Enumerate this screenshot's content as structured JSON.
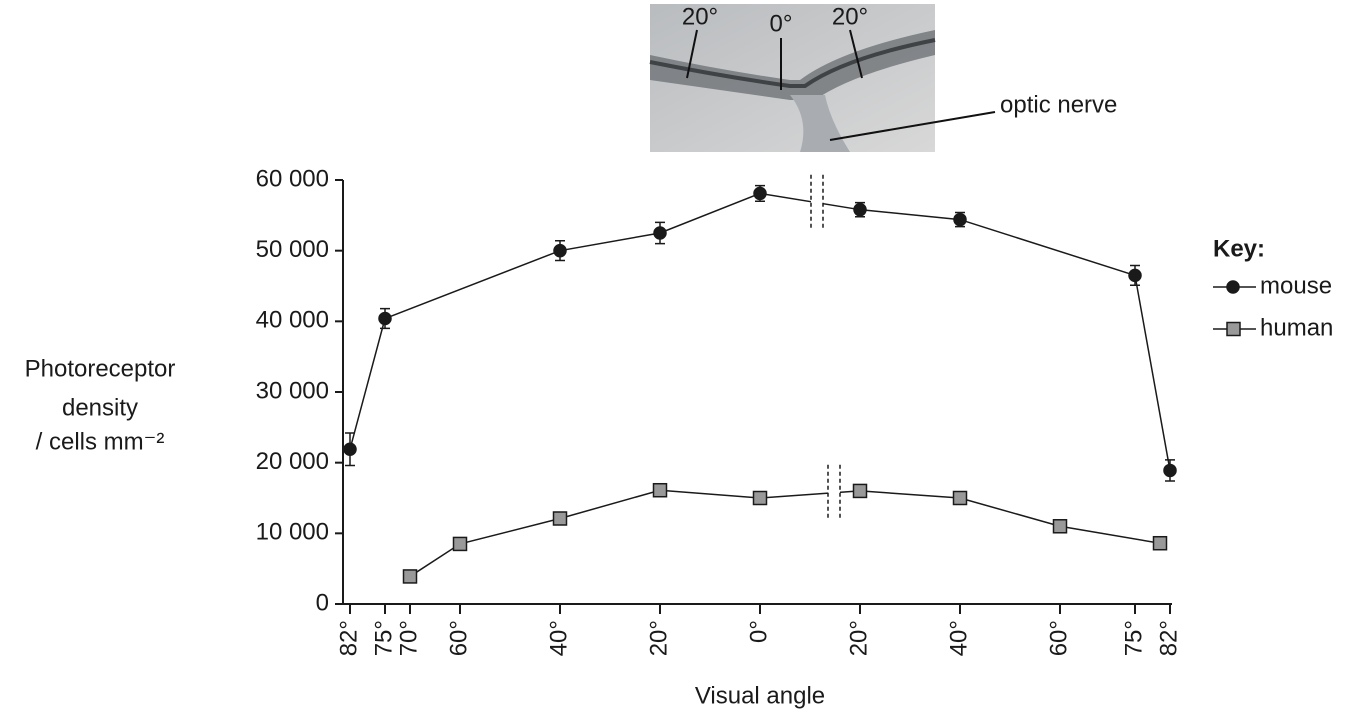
{
  "inset": {
    "labels": [
      "20°",
      "0°",
      "20°",
      "optic nerve"
    ]
  },
  "chart_data": {
    "type": "line",
    "x_label": "Visual angle",
    "y_label": [
      "Photoreceptor",
      "density",
      "/ cells mm⁻²"
    ],
    "legend_title": "Key:",
    "xlim": [
      -82,
      82
    ],
    "xticks": [
      {
        "value": -82,
        "label": "82°"
      },
      {
        "value": -75,
        "label": "75°"
      },
      {
        "value": -70,
        "label": "70°"
      },
      {
        "value": -60,
        "label": "60°"
      },
      {
        "value": -40,
        "label": "40°"
      },
      {
        "value": -20,
        "label": "20°"
      },
      {
        "value": 0,
        "label": "0°"
      },
      {
        "value": 20,
        "label": "20°"
      },
      {
        "value": 40,
        "label": "40°"
      },
      {
        "value": 60,
        "label": "60°"
      },
      {
        "value": 75,
        "label": "75°"
      },
      {
        "value": 82,
        "label": "82°"
      }
    ],
    "ylim": [
      0,
      60000
    ],
    "yticks": [
      0,
      {
        "value": 10000,
        "label": "10 000"
      },
      {
        "value": 20000,
        "label": "20 000"
      },
      {
        "value": 30000,
        "label": "30 000"
      },
      {
        "value": 40000,
        "label": "40 000"
      },
      {
        "value": 50000,
        "label": "50 000"
      },
      {
        "value": 60000,
        "label": "60 000"
      }
    ],
    "series": [
      {
        "name": "mouse",
        "color": "#1a1a1a",
        "marker": "circle",
        "x": [
          -82,
          -75,
          -40,
          -20,
          0,
          20,
          40,
          75,
          82
        ],
        "values": [
          21900,
          40400,
          50000,
          52500,
          58100,
          55800,
          54400,
          46500,
          18900
        ],
        "errors": [
          2300,
          1400,
          1400,
          1500,
          1100,
          1000,
          1000,
          1400,
          1500
        ]
      },
      {
        "name": "human",
        "color": "#999999",
        "marker": "square",
        "x": [
          -70,
          -60,
          -40,
          -20,
          0,
          20,
          40,
          60,
          80
        ],
        "values": [
          3900,
          8500,
          12100,
          16100,
          15000,
          16000,
          15000,
          11000,
          8600
        ]
      }
    ]
  }
}
